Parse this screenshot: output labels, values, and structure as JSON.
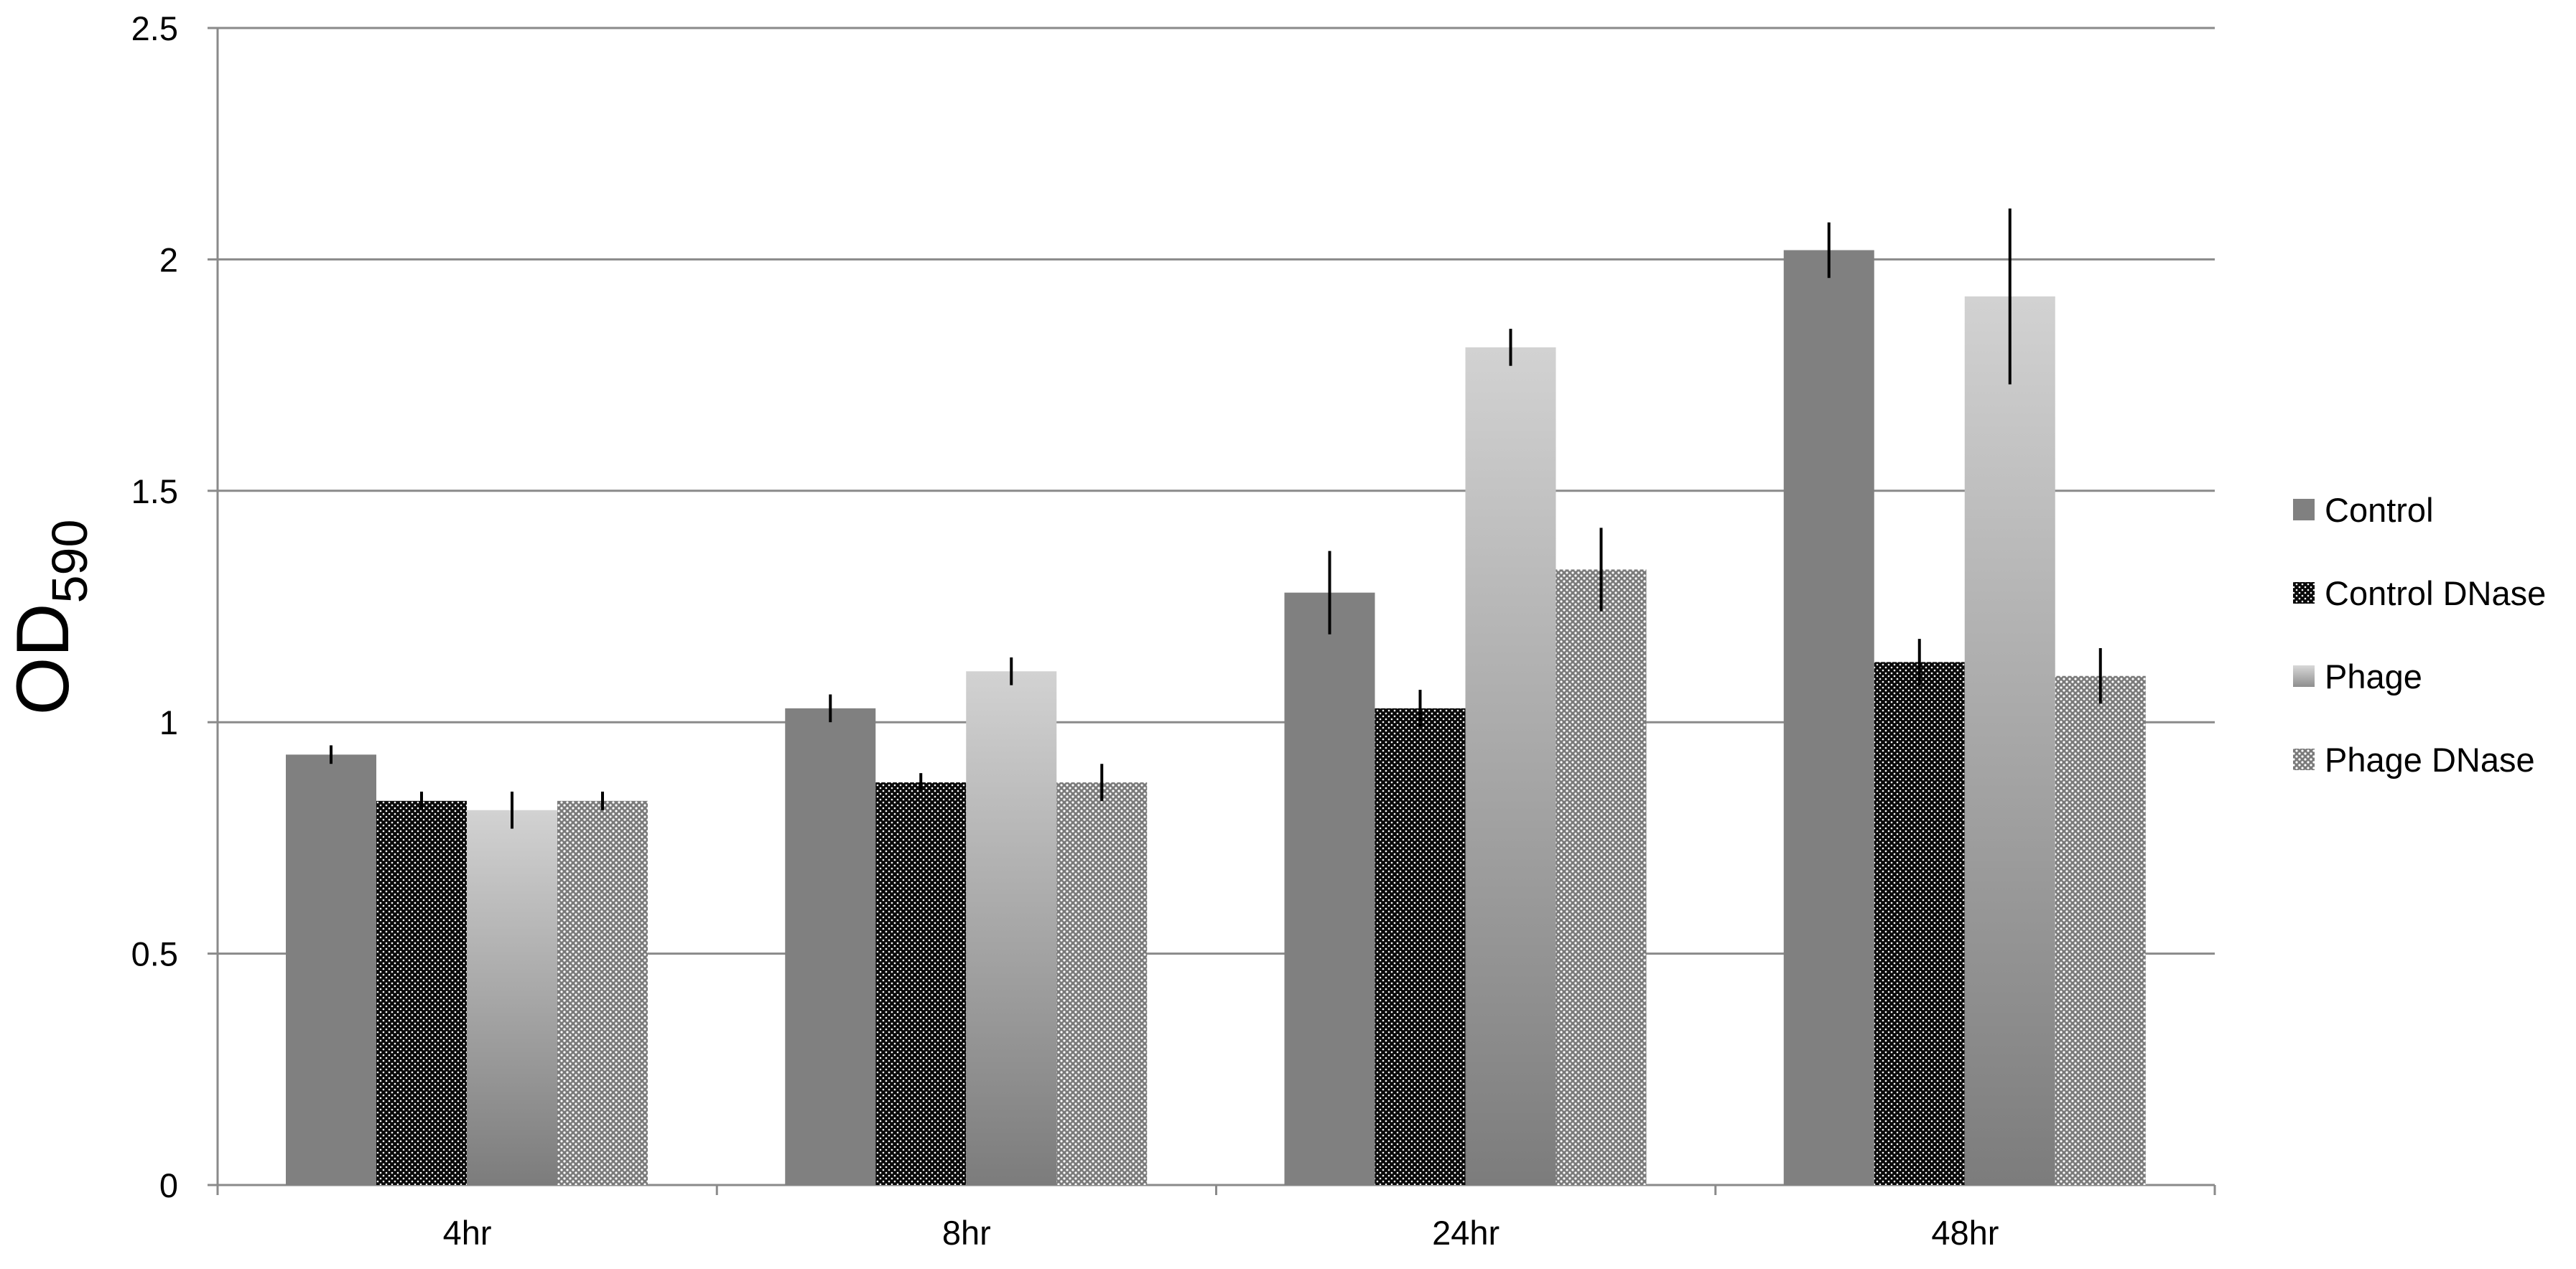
{
  "chart_data": {
    "type": "bar",
    "title": "",
    "xlabel": "",
    "ylabel": "OD",
    "ylabel_subscript": "590",
    "categories": [
      "4hr",
      "8hr",
      "24hr",
      "48hr"
    ],
    "ylim": [
      0,
      2.5
    ],
    "yticks": [
      "0",
      "0.5",
      "1",
      "1.5",
      "2",
      "2.5"
    ],
    "grid": true,
    "legend_position": "right",
    "series": [
      {
        "name": "Control",
        "values": [
          0.93,
          1.03,
          1.28,
          2.02
        ],
        "errors": [
          0.02,
          0.03,
          0.09,
          0.06
        ],
        "style": "solid-dark-gray",
        "color": "#808080"
      },
      {
        "name": "Control DNase",
        "values": [
          0.83,
          0.87,
          1.03,
          1.13
        ],
        "errors": [
          0.02,
          0.02,
          0.04,
          0.05
        ],
        "style": "dotted-black",
        "color": "#111111"
      },
      {
        "name": "Phage",
        "values": [
          0.81,
          1.11,
          1.81,
          1.92
        ],
        "errors": [
          0.04,
          0.03,
          0.04,
          0.19
        ],
        "style": "gradient-light-gray",
        "color": "#c8c8c8"
      },
      {
        "name": "Phage DNase",
        "values": [
          0.83,
          0.87,
          1.33,
          1.1
        ],
        "errors": [
          0.02,
          0.04,
          0.09,
          0.06
        ],
        "style": "dotted-gray",
        "color": "#8a8a8a"
      }
    ]
  }
}
